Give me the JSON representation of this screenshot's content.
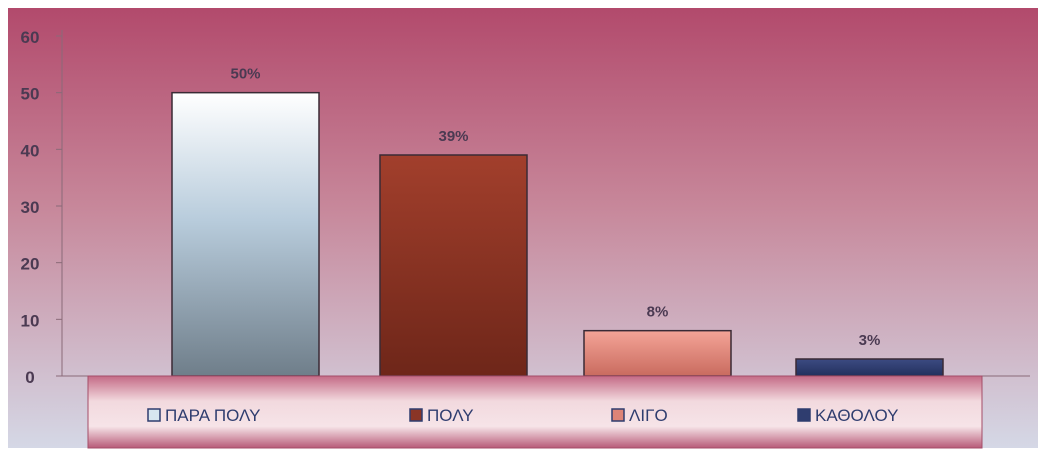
{
  "chart_data": {
    "type": "bar",
    "categories": [
      "ΠΑΡΑ ΠΟΛΥ",
      "ΠΟΛΥ",
      "ΛΙΓΟ",
      "ΚΑΘΟΛΟΥ"
    ],
    "values": [
      50,
      39,
      8,
      3
    ],
    "data_labels": [
      "50%",
      "39%",
      "8%",
      "3%"
    ],
    "title": "",
    "xlabel": "",
    "ylabel": "",
    "ylim": [
      0,
      60
    ],
    "yticks": [
      0,
      10,
      20,
      30,
      40,
      50,
      60
    ],
    "grid": false,
    "legend": {
      "placement": "bottom",
      "entries": [
        "ΠΑΡΑ ΠΟΛΥ",
        "ΠΟΛΥ",
        "ΛΙΓΟ",
        "ΚΑΘΟΛΟΥ"
      ]
    },
    "colors": {
      "bars": [
        "#c7d9e6",
        "#8a3526",
        "#dd8477",
        "#2f3d6f"
      ],
      "background_top": "#b24a6c",
      "background_bottom": "#d5d8e6",
      "legend_panel": "#e3b8c1"
    }
  }
}
